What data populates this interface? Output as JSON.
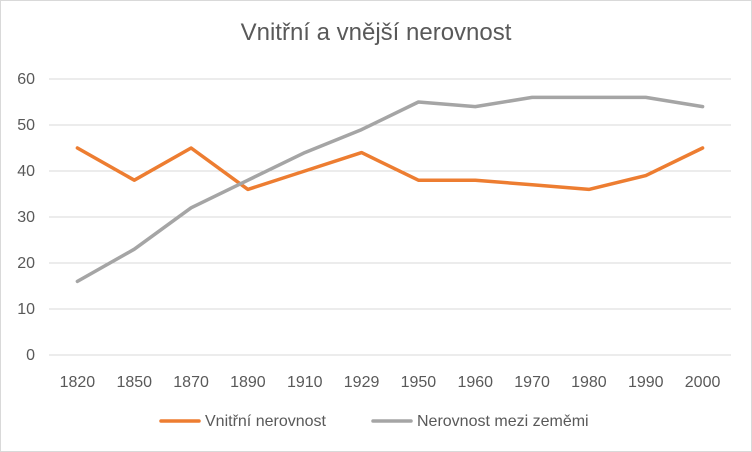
{
  "chart_data": {
    "type": "line",
    "title": "Vnitřní a vnější nerovnost",
    "xlabel": "",
    "ylabel": "",
    "categories": [
      "1820",
      "1850",
      "1870",
      "1890",
      "1910",
      "1929",
      "1950",
      "1960",
      "1970",
      "1980",
      "1990",
      "2000"
    ],
    "ylim": [
      0,
      60
    ],
    "yticks": [
      0,
      10,
      20,
      30,
      40,
      50,
      60
    ],
    "grid": true,
    "legend_position": "bottom",
    "series": [
      {
        "name": "Vnitřní nerovnost",
        "color": "#ed7d31",
        "values": [
          45,
          38,
          45,
          36,
          40,
          44,
          38,
          38,
          37,
          36,
          39,
          45
        ]
      },
      {
        "name": "Nerovnost mezi zeměmi",
        "color": "#a5a5a5",
        "values": [
          16,
          23,
          32,
          38,
          44,
          49,
          55,
          54,
          56,
          56,
          56,
          54
        ]
      }
    ]
  }
}
